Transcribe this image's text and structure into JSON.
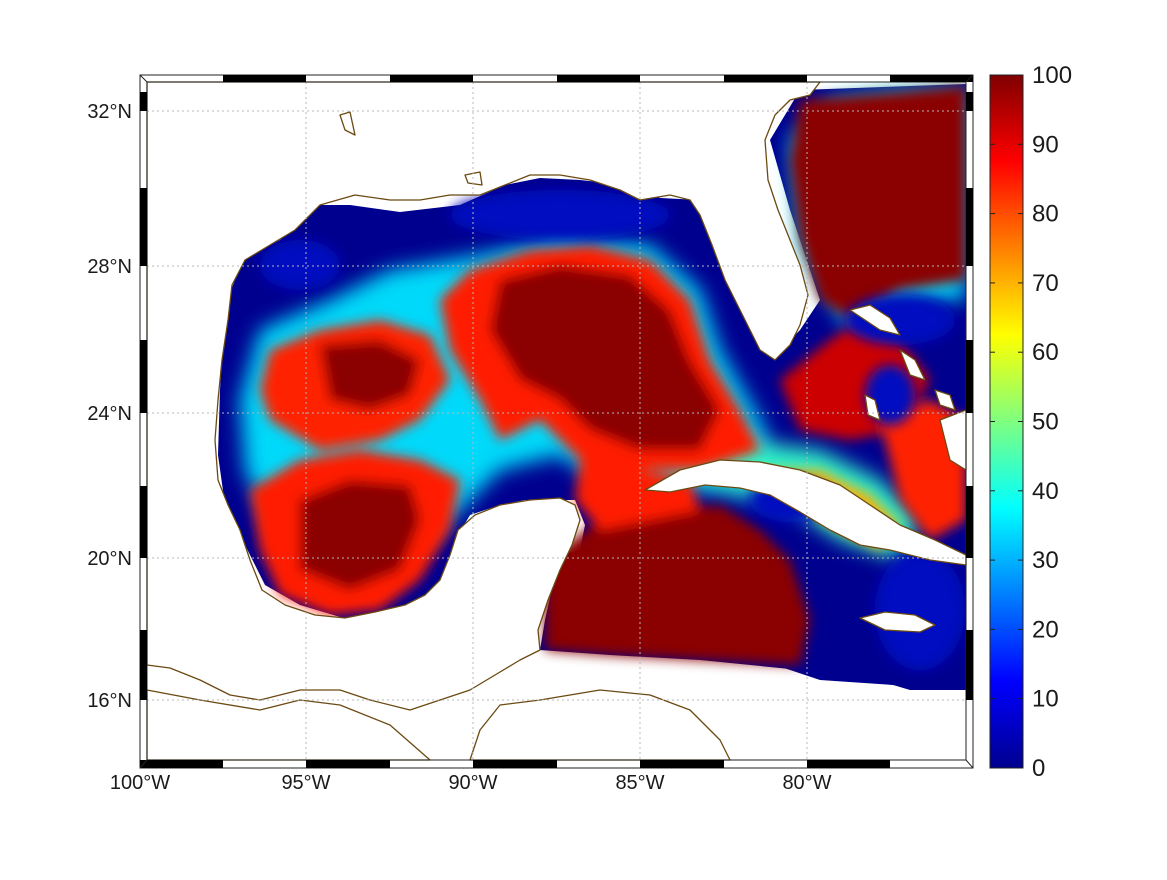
{
  "map": {
    "projection": "mercator-like",
    "lon_range": [
      -100,
      -75
    ],
    "lat_range": [
      14.3,
      33
    ],
    "lon_ticks": [
      "100°W",
      "95°W",
      "90°W",
      "85°W",
      "80°W"
    ],
    "lat_ticks": [
      "16°N",
      "20°N",
      "24°N",
      "28°N",
      "32°N"
    ],
    "grid": true,
    "coastline_color": "#6b4a12"
  },
  "colorbar": {
    "colormap": "jet",
    "range": [
      0,
      100
    ],
    "ticks": [
      "0",
      "10",
      "20",
      "30",
      "40",
      "50",
      "60",
      "70",
      "80",
      "90",
      "100"
    ],
    "placement": "right"
  },
  "field": {
    "description_regions": [
      {
        "region": "northern Gulf shelf",
        "value": 0
      },
      {
        "region": "central Gulf / Loop Current",
        "value": 100
      },
      {
        "region": "western Gulf",
        "value": 100
      },
      {
        "region": "Bay of Campeche",
        "value": 100
      },
      {
        "region": "Florida Straits / Gulf Stream",
        "value": 100
      },
      {
        "region": "Bahamas banks",
        "value": 10
      },
      {
        "region": "north of Cuba",
        "value": 70
      },
      {
        "region": "Caribbean south of Cuba",
        "value": 100
      },
      {
        "region": "east of Jamaica",
        "value": 5
      }
    ]
  }
}
